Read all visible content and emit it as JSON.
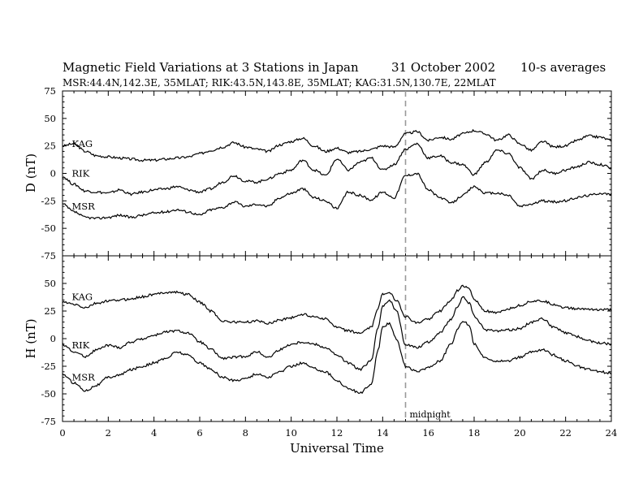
{
  "header": {
    "title": "Magnetic Field Variations at 3 Stations in Japan",
    "date": "31 October 2002",
    "averaging": "10-s averages",
    "stations_line": "MSR:44.4N,142.3E, 35MLAT;  RIK:43.5N,143.8E, 35MLAT;  KAG:31.5N,130.7E, 22MLAT"
  },
  "chart_data": [
    {
      "type": "line",
      "title": "",
      "xlabel": "",
      "ylabel": "D (nT)",
      "xlim": [
        0,
        24
      ],
      "ylim": [
        -75,
        75
      ],
      "yticks": [
        -75,
        -50,
        -25,
        0,
        25,
        50,
        75
      ],
      "grid": false,
      "legend": "none",
      "station_labels": [
        "KAG",
        "RIK",
        "MSR"
      ],
      "series": [
        {
          "name": "KAG",
          "x": [
            0,
            0.5,
            1,
            1.5,
            2,
            2.5,
            3,
            3.5,
            4,
            4.5,
            5,
            5.5,
            6,
            6.5,
            7,
            7.5,
            8,
            8.5,
            9,
            9.5,
            10,
            10.5,
            11,
            11.5,
            12,
            12.5,
            13,
            13.5,
            14,
            14.5,
            15,
            15.5,
            16,
            16.5,
            17,
            17.5,
            18,
            18.5,
            19,
            19.5,
            20,
            20.5,
            21,
            21.5,
            22,
            22.5,
            23,
            23.5,
            24
          ],
          "values": [
            25,
            27,
            20,
            16,
            15,
            14,
            13,
            12,
            12,
            13,
            14,
            15,
            18,
            21,
            24,
            28,
            24,
            22,
            20,
            26,
            29,
            32,
            25,
            20,
            23,
            19,
            20,
            22,
            25,
            24,
            36,
            38,
            30,
            33,
            31,
            36,
            39,
            36,
            30,
            35,
            27,
            21,
            29,
            24,
            25,
            30,
            34,
            33,
            30
          ]
        },
        {
          "name": "RIK",
          "x": [
            0,
            0.5,
            1,
            1.5,
            2,
            2.5,
            3,
            3.5,
            4,
            4.5,
            5,
            5.5,
            6,
            6.5,
            7,
            7.5,
            8,
            8.5,
            9,
            9.5,
            10,
            10.5,
            11,
            11.5,
            12,
            12.5,
            13,
            13.5,
            14,
            14.5,
            15,
            15.5,
            16,
            16.5,
            17,
            17.5,
            18,
            18.5,
            19,
            19.5,
            20,
            20.5,
            21,
            21.5,
            22,
            22.5,
            23,
            23.5,
            24
          ],
          "values": [
            -3,
            -10,
            -16,
            -17,
            -18,
            -15,
            -19,
            -17,
            -15,
            -14,
            -12,
            -15,
            -17,
            -14,
            -8,
            -2,
            -7,
            -8,
            -5,
            0,
            3,
            12,
            3,
            -2,
            13,
            3,
            10,
            14,
            3,
            8,
            22,
            27,
            14,
            16,
            10,
            8,
            -1,
            10,
            21,
            18,
            5,
            -5,
            3,
            0,
            3,
            6,
            10,
            8,
            5
          ]
        },
        {
          "name": "MSR",
          "x": [
            0,
            0.5,
            1,
            1.5,
            2,
            2.5,
            3,
            3.5,
            4,
            4.5,
            5,
            5.5,
            6,
            6.5,
            7,
            7.5,
            8,
            8.5,
            9,
            9.5,
            10,
            10.5,
            11,
            11.5,
            12,
            12.5,
            13,
            13.5,
            14,
            14.5,
            15,
            15.5,
            16,
            16.5,
            17,
            17.5,
            18,
            18.5,
            19,
            19.5,
            20,
            20.5,
            21,
            21.5,
            22,
            22.5,
            23,
            23.5,
            24
          ],
          "values": [
            -28,
            -35,
            -40,
            -41,
            -40,
            -38,
            -40,
            -38,
            -36,
            -35,
            -33,
            -35,
            -38,
            -33,
            -31,
            -26,
            -30,
            -28,
            -30,
            -22,
            -18,
            -14,
            -22,
            -25,
            -32,
            -17,
            -20,
            -24,
            -17,
            -22,
            -2,
            0,
            -15,
            -22,
            -27,
            -20,
            -12,
            -18,
            -18,
            -20,
            -30,
            -28,
            -25,
            -26,
            -25,
            -22,
            -20,
            -18,
            -19
          ]
        }
      ],
      "station_label_positions": [
        [
          0.3,
          27
        ],
        [
          0.3,
          0
        ],
        [
          0.3,
          -30
        ]
      ]
    },
    {
      "type": "line",
      "title": "",
      "xlabel": "Universal Time",
      "ylabel": "H (nT)",
      "xlim": [
        0,
        24
      ],
      "ylim": [
        -75,
        75
      ],
      "yticks": [
        -75,
        -50,
        -25,
        0,
        25,
        50
      ],
      "xticks": [
        0,
        2,
        4,
        6,
        8,
        10,
        12,
        14,
        16,
        18,
        20,
        22,
        24
      ],
      "grid": false,
      "legend": "none",
      "station_labels": [
        "KAG",
        "RIK",
        "MSR"
      ],
      "annotation": "midnight",
      "midnight_ut": 15,
      "series": [
        {
          "name": "KAG",
          "x": [
            0,
            0.5,
            1,
            1.5,
            2,
            2.5,
            3,
            3.5,
            4,
            4.5,
            5,
            5.5,
            6,
            6.5,
            7,
            7.5,
            8,
            8.5,
            9,
            9.5,
            10,
            10.5,
            11,
            11.5,
            12,
            12.5,
            13,
            13.5,
            13.8,
            14,
            14.3,
            14.6,
            15,
            15.5,
            16,
            16.5,
            17,
            17.3,
            17.5,
            17.8,
            18,
            18.5,
            19,
            19.5,
            20,
            20.5,
            21,
            21.5,
            22,
            22.5,
            23,
            23.5,
            24
          ],
          "values": [
            33,
            31,
            28,
            32,
            34,
            35,
            36,
            38,
            40,
            42,
            42,
            40,
            33,
            25,
            16,
            15,
            15,
            16,
            14,
            17,
            19,
            22,
            20,
            18,
            10,
            7,
            5,
            10,
            28,
            40,
            42,
            35,
            20,
            14,
            18,
            25,
            35,
            44,
            48,
            45,
            35,
            25,
            23,
            27,
            30,
            34,
            34,
            31,
            28,
            27,
            27,
            26,
            26
          ]
        },
        {
          "name": "RIK",
          "x": [
            0,
            0.5,
            1,
            1.5,
            2,
            2.5,
            3,
            3.5,
            4,
            4.5,
            5,
            5.5,
            6,
            6.5,
            7,
            7.5,
            8,
            8.5,
            9,
            9.5,
            10,
            10.5,
            11,
            11.5,
            12,
            12.5,
            13,
            13.5,
            13.8,
            14,
            14.3,
            14.6,
            15,
            15.5,
            16,
            16.5,
            17,
            17.3,
            17.5,
            17.8,
            18,
            18.5,
            19,
            19.5,
            20,
            20.5,
            21,
            21.5,
            22,
            22.5,
            23,
            23.5,
            24
          ],
          "values": [
            -5,
            -12,
            -16,
            -10,
            -6,
            -8,
            -3,
            0,
            3,
            6,
            7,
            5,
            -3,
            -10,
            -18,
            -17,
            -16,
            -12,
            -17,
            -10,
            -5,
            -3,
            -5,
            -8,
            -15,
            -22,
            -28,
            -20,
            10,
            30,
            35,
            25,
            -5,
            -8,
            -3,
            5,
            18,
            30,
            38,
            32,
            20,
            8,
            7,
            8,
            9,
            15,
            18,
            10,
            5,
            2,
            -2,
            -4,
            -5
          ]
        },
        {
          "name": "MSR",
          "x": [
            0,
            0.5,
            1,
            1.5,
            2,
            2.5,
            3,
            3.5,
            4,
            4.5,
            5,
            5.5,
            6,
            6.5,
            7,
            7.5,
            8,
            8.5,
            9,
            9.5,
            10,
            10.5,
            11,
            11.5,
            12,
            12.5,
            13,
            13.5,
            13.8,
            14,
            14.3,
            14.6,
            15,
            15.5,
            16,
            16.5,
            17,
            17.3,
            17.5,
            17.8,
            18,
            18.5,
            19,
            19.5,
            20,
            20.5,
            21,
            21.5,
            22,
            22.5,
            23,
            23.5,
            24
          ],
          "values": [
            -32,
            -40,
            -47,
            -42,
            -35,
            -33,
            -28,
            -25,
            -22,
            -18,
            -12,
            -15,
            -22,
            -28,
            -35,
            -38,
            -36,
            -32,
            -35,
            -30,
            -25,
            -22,
            -27,
            -30,
            -38,
            -45,
            -49,
            -42,
            -10,
            10,
            14,
            0,
            -25,
            -30,
            -26,
            -20,
            -5,
            10,
            16,
            12,
            -5,
            -18,
            -20,
            -20,
            -17,
            -12,
            -10,
            -15,
            -20,
            -25,
            -28,
            -30,
            -31
          ]
        }
      ],
      "station_label_positions": [
        [
          0.3,
          38
        ],
        [
          0.3,
          -6
        ],
        [
          0.3,
          -35
        ]
      ]
    }
  ]
}
